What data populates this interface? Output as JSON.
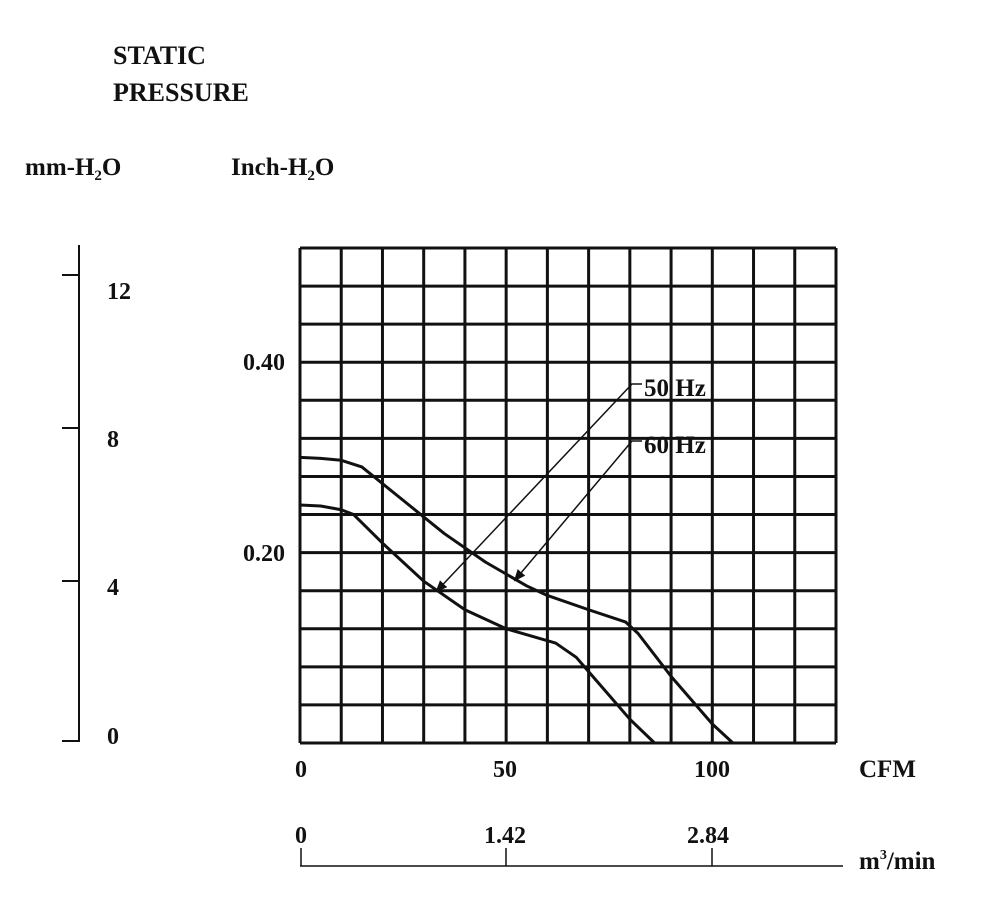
{
  "chart_data": {
    "type": "line",
    "title_lines": [
      "STATIC",
      "PRESSURE"
    ],
    "y_left_unit": {
      "main": "mm-H",
      "sub": "2",
      "tail": "O"
    },
    "y_right_unit": {
      "main": "Inch-H",
      "sub": "2",
      "tail": "O"
    },
    "y_left_ticks": [
      "12",
      "8",
      "4",
      "0"
    ],
    "y_right_ticks": [
      "0.40",
      "0.20"
    ],
    "x_unit": "CFM",
    "x_ticks": [
      "0",
      "50",
      "100"
    ],
    "x2_unit": {
      "main": "m",
      "sup": "3",
      "tail": "/min"
    },
    "x2_ticks": [
      "0",
      "1.42",
      "2.84"
    ],
    "xlim": [
      0,
      130
    ],
    "ylim": [
      0,
      0.52
    ],
    "grid": true,
    "series": [
      {
        "name": "50 Hz",
        "x": [
          0,
          5,
          10,
          13,
          20,
          30,
          40,
          50,
          58,
          62,
          67,
          70,
          80,
          86
        ],
        "y": [
          0.25,
          0.249,
          0.245,
          0.24,
          0.21,
          0.17,
          0.14,
          0.12,
          0.11,
          0.105,
          0.09,
          0.075,
          0.025,
          0
        ]
      },
      {
        "name": "60 Hz",
        "x": [
          0,
          5,
          10,
          15,
          25,
          35,
          45,
          55,
          60,
          70,
          79,
          82,
          90,
          100,
          105
        ],
        "y": [
          0.3,
          0.299,
          0.297,
          0.29,
          0.255,
          0.22,
          0.19,
          0.165,
          0.155,
          0.14,
          0.127,
          0.115,
          0.07,
          0.02,
          0
        ]
      }
    ],
    "annotations": [
      {
        "label": "50 Hz",
        "series": "50 Hz",
        "arrow_to_x": 33
      },
      {
        "label": "60 Hz",
        "series": "60 Hz",
        "arrow_to_x": 52
      }
    ]
  }
}
